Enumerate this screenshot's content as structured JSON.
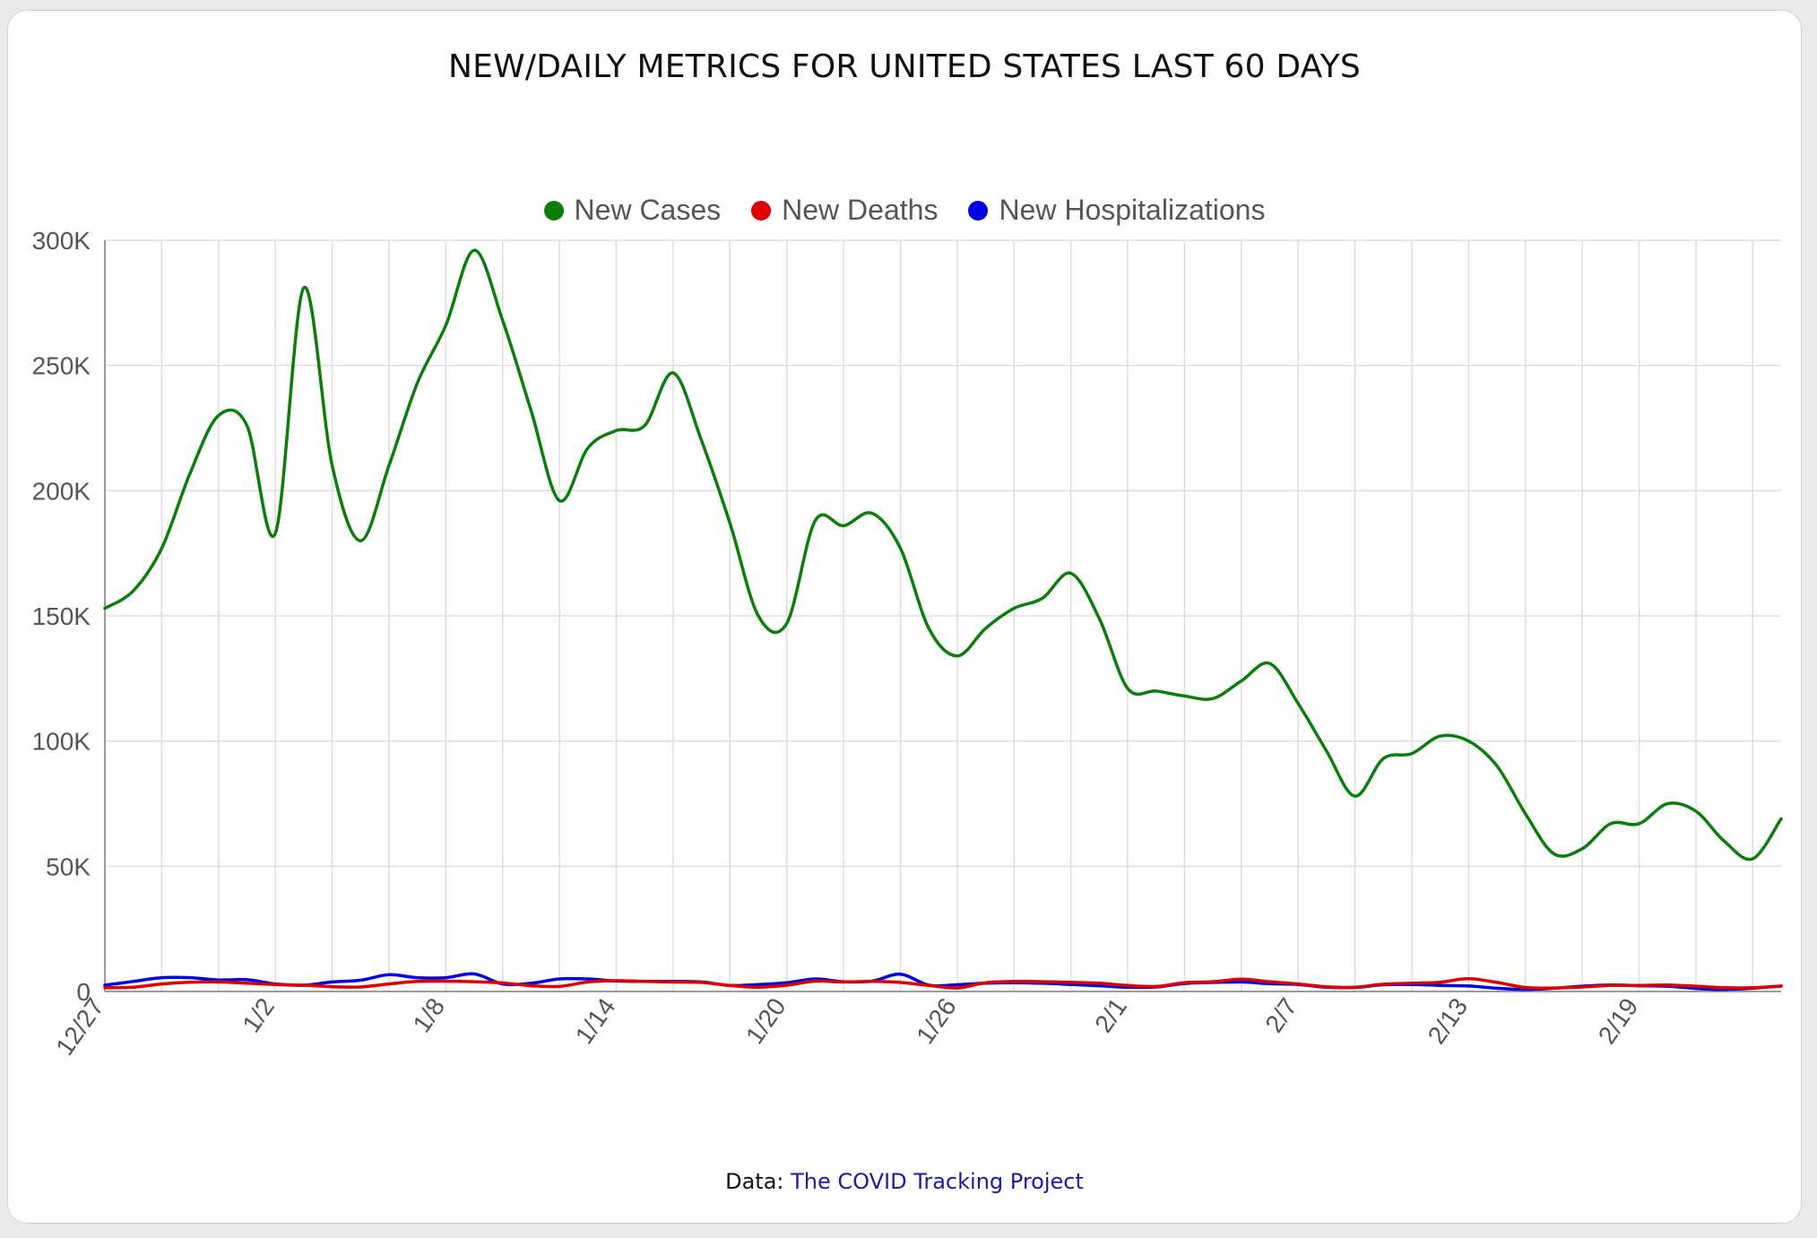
{
  "title": "NEW/DAILY METRICS FOR UNITED STATES LAST 60 DAYS",
  "source": {
    "prefix": "Data:",
    "link_text": "The COVID Tracking Project"
  },
  "colors": {
    "new_cases": "#0a7d0a",
    "new_deaths": "#e00000",
    "new_hospitalizations": "#0000e6",
    "grid": "#dddddd",
    "axis": "#9a9a9a",
    "tick_text": "#555555"
  },
  "chart_data": {
    "type": "line",
    "legend_placement": "top-center",
    "grid": true,
    "ylim": [
      0,
      300000
    ],
    "yticks": [
      {
        "value": 0,
        "label": "0"
      },
      {
        "value": 50000,
        "label": "50K"
      },
      {
        "value": 100000,
        "label": "100K"
      },
      {
        "value": 150000,
        "label": "150K"
      },
      {
        "value": 200000,
        "label": "200K"
      },
      {
        "value": 250000,
        "label": "250K"
      },
      {
        "value": 300000,
        "label": "300K"
      }
    ],
    "x": [
      "12/27",
      "12/28",
      "12/29",
      "12/30",
      "12/31",
      "1/1",
      "1/2",
      "1/3",
      "1/4",
      "1/5",
      "1/6",
      "1/7",
      "1/8",
      "1/9",
      "1/10",
      "1/11",
      "1/12",
      "1/13",
      "1/14",
      "1/15",
      "1/16",
      "1/17",
      "1/18",
      "1/19",
      "1/20",
      "1/21",
      "1/22",
      "1/23",
      "1/24",
      "1/25",
      "1/26",
      "1/27",
      "1/28",
      "1/29",
      "1/30",
      "1/31",
      "2/1",
      "2/2",
      "2/3",
      "2/4",
      "2/5",
      "2/6",
      "2/7",
      "2/8",
      "2/9",
      "2/10",
      "2/11",
      "2/12",
      "2/13",
      "2/14",
      "2/15",
      "2/16",
      "2/17",
      "2/18",
      "2/19",
      "2/20",
      "2/21",
      "2/22",
      "2/23",
      "2/24"
    ],
    "xtick_labels": [
      "12/27",
      "1/2",
      "1/8",
      "1/14",
      "1/20",
      "1/26",
      "2/1",
      "2/7",
      "2/13",
      "2/19"
    ],
    "series": [
      {
        "name": "New Cases",
        "values": [
          153000,
          160000,
          177000,
          207000,
          230000,
          226000,
          183000,
          281000,
          210000,
          180000,
          210000,
          243000,
          266000,
          296000,
          268000,
          232000,
          196000,
          217000,
          224000,
          226000,
          247000,
          220000,
          187000,
          150000,
          147000,
          188000,
          186000,
          191000,
          177000,
          145000,
          134000,
          145000,
          153000,
          157000,
          167000,
          149000,
          121000,
          120000,
          118000,
          117000,
          124000,
          131000,
          115000,
          96000,
          78000,
          93000,
          95000,
          102000,
          100000,
          90000,
          71000,
          55000,
          57000,
          67000,
          67000,
          75000,
          72000,
          60000,
          53000,
          69000
        ]
      },
      {
        "name": "New Deaths",
        "values": [
          1500,
          1700,
          3000,
          3700,
          3800,
          3300,
          2800,
          2500,
          1900,
          1800,
          3000,
          4000,
          4100,
          3900,
          3400,
          2300,
          2000,
          3800,
          4300,
          4000,
          3800,
          3600,
          2400,
          1700,
          2500,
          4100,
          3800,
          4000,
          3600,
          2400,
          1400,
          3500,
          4000,
          3900,
          3700,
          3300,
          2400,
          2000,
          3500,
          3900,
          4900,
          3900,
          3000,
          1900,
          1700,
          2900,
          3300,
          3700,
          5100,
          3600,
          1600,
          1400,
          1800,
          2400,
          2400,
          2600,
          2100,
          1500,
          1500,
          2100
        ]
      },
      {
        "name": "New Hospitalizations",
        "values": [
          2500,
          4000,
          5500,
          5500,
          4600,
          4700,
          3000,
          2500,
          3800,
          4500,
          6700,
          5500,
          5500,
          7000,
          3000,
          3300,
          5000,
          5000,
          4200,
          4000,
          4000,
          3800,
          2400,
          2800,
          3500,
          5000,
          3900,
          4100,
          6900,
          2500,
          2700,
          3300,
          3500,
          3300,
          2800,
          2300,
          1700,
          1800,
          3200,
          3600,
          3800,
          3100,
          2800,
          1700,
          1600,
          2700,
          2800,
          2400,
          2200,
          1300,
          800,
          1300,
          2100,
          2600,
          2300,
          2100,
          1200,
          800,
          1300,
          2200
        ]
      }
    ]
  }
}
